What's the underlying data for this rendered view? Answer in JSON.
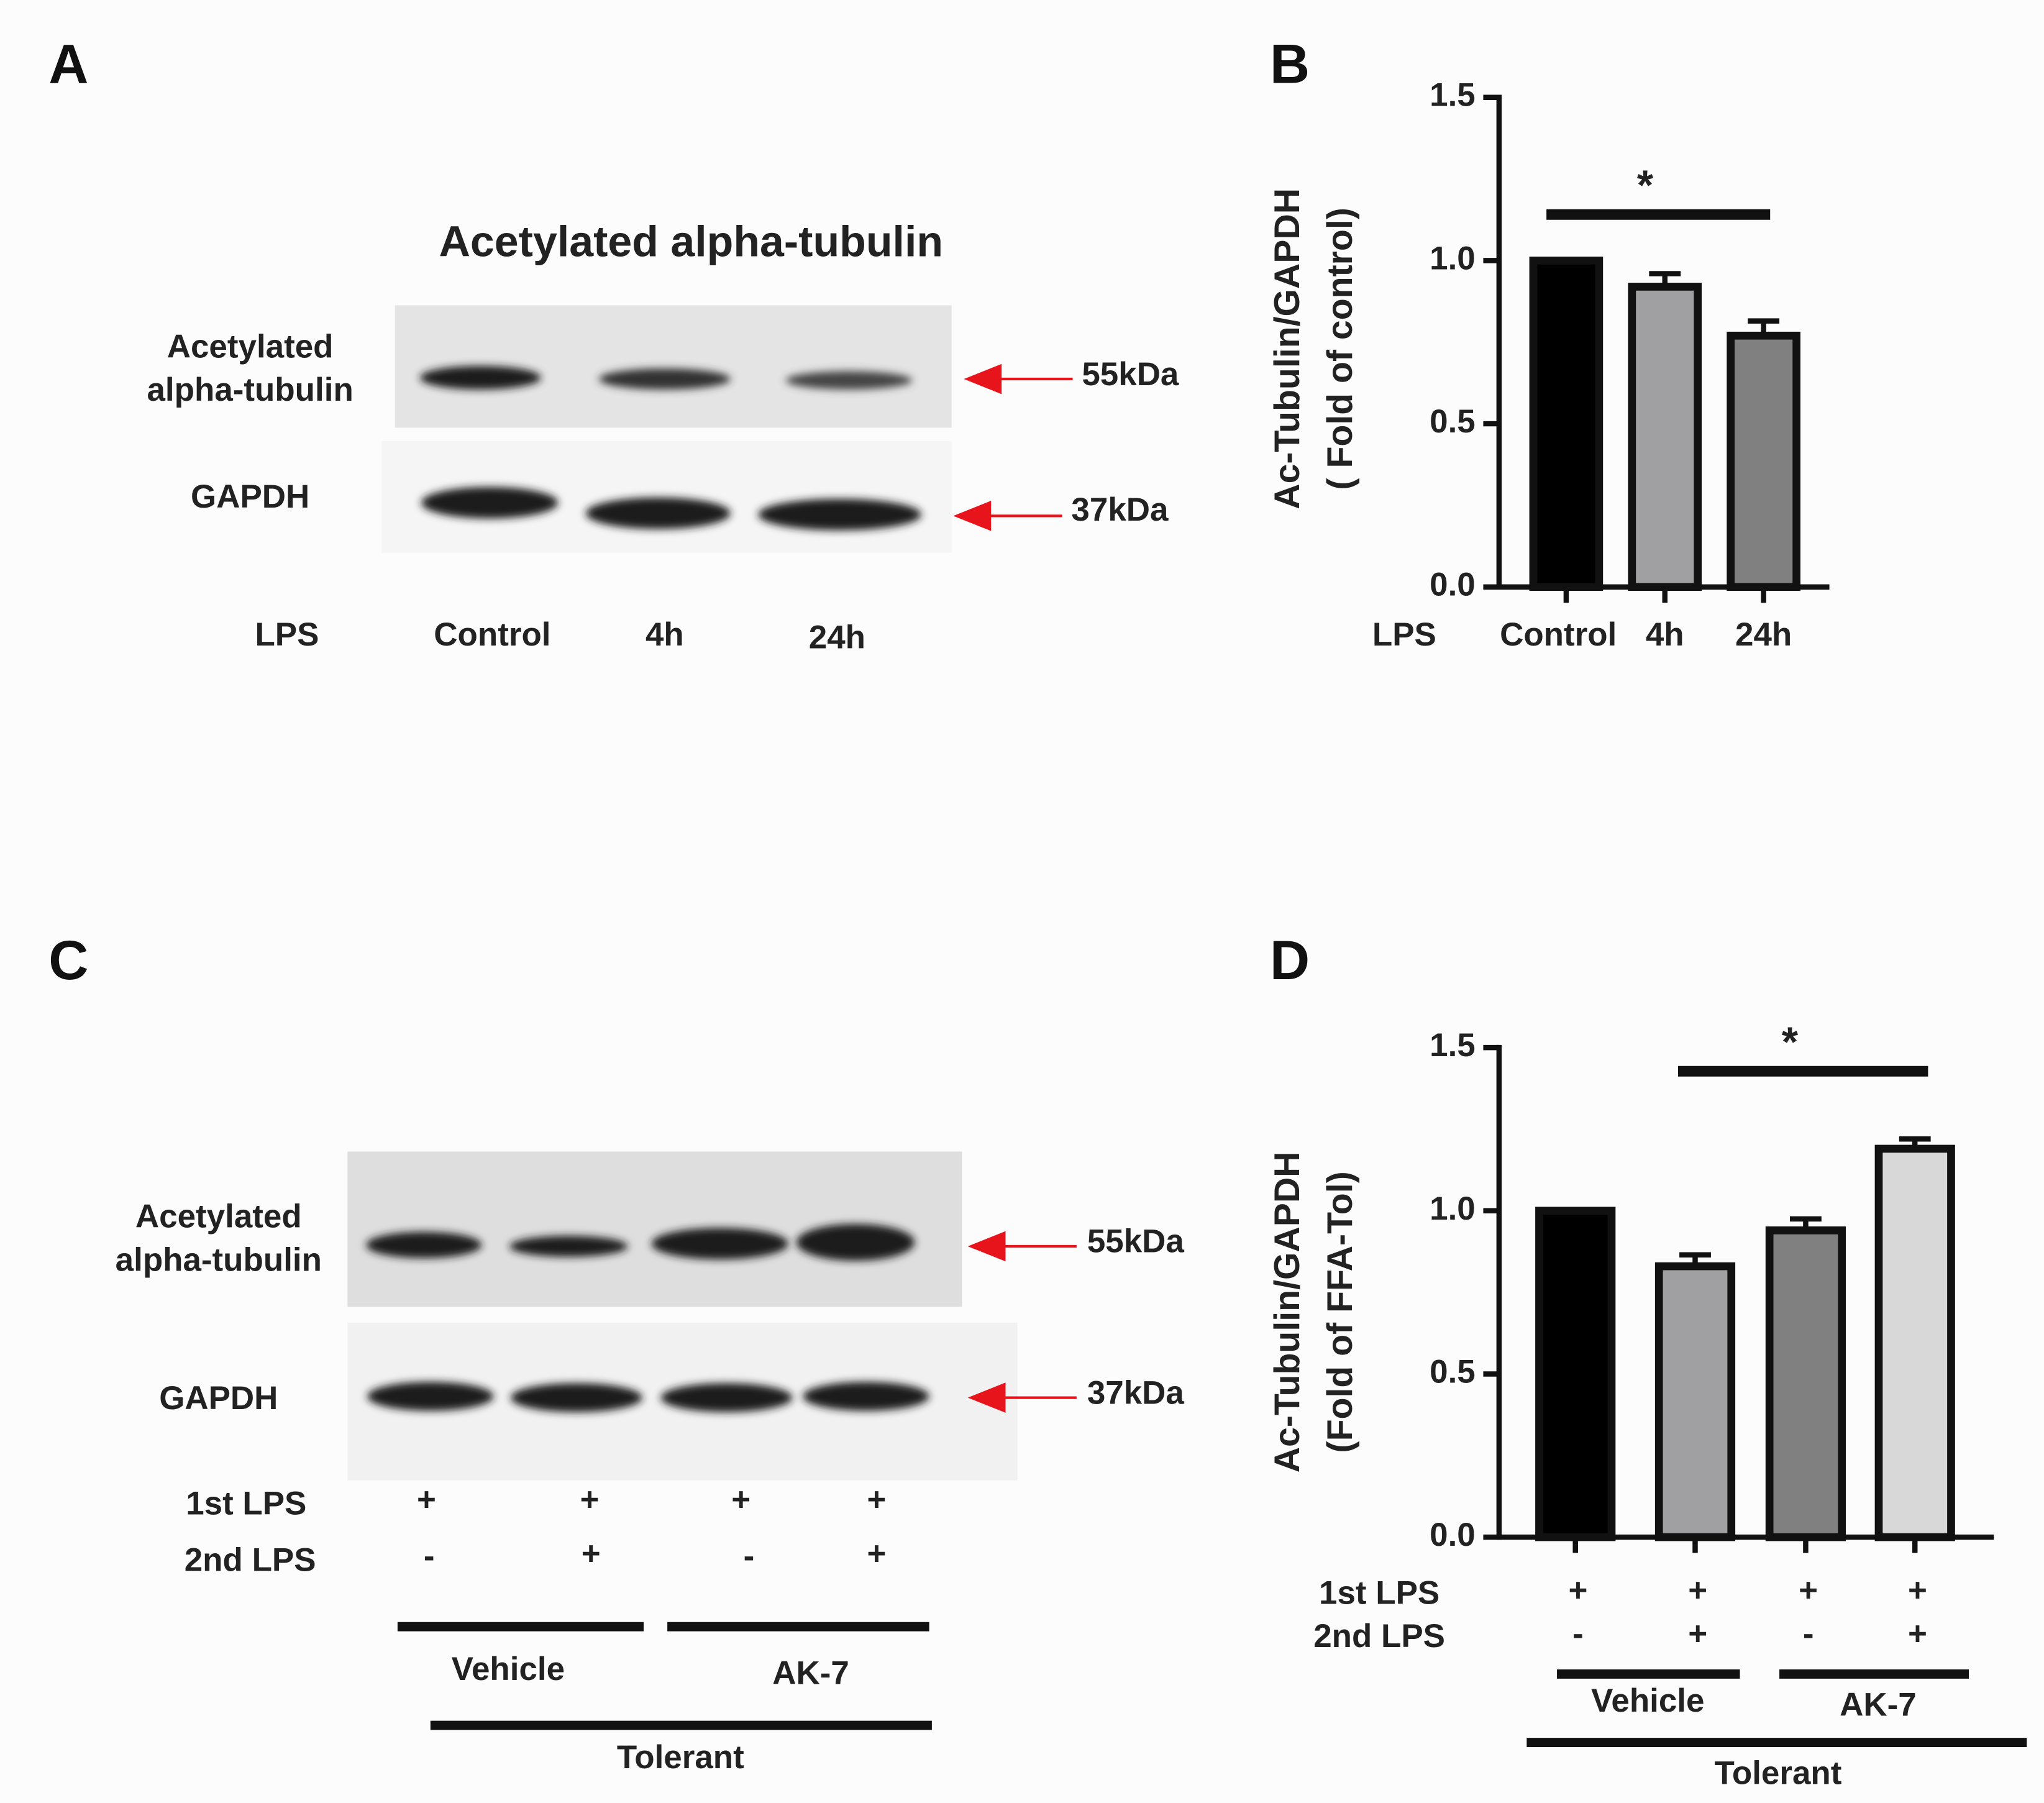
{
  "panels": {
    "a": {
      "letter": "A",
      "title": "Acetylated  alpha-tubulin",
      "row1": [
        "Acetylated",
        "alpha-tubulin"
      ],
      "row2": "GAPDH",
      "kda1": "55kDa",
      "kda2": "37kDa",
      "lane_header": "LPS",
      "lanes": [
        "Control",
        "4h",
        "24h"
      ]
    },
    "c": {
      "letter": "C",
      "row1": [
        "Acetylated",
        "alpha-tubulin"
      ],
      "row2": "GAPDH",
      "kda1": "55kDa",
      "kda2": "37kDa",
      "condition_rows": [
        {
          "name": "1st LPS",
          "values": [
            "+",
            "+",
            "+",
            "+"
          ]
        },
        {
          "name": "2nd LPS",
          "values": [
            "-",
            "+",
            "-",
            "+"
          ]
        }
      ],
      "groups": [
        "Vehicle",
        "AK-7"
      ],
      "supergroup": "Tolerant"
    },
    "b": {
      "letter": "B"
    },
    "d": {
      "letter": "D"
    }
  },
  "chart_data": [
    {
      "type": "bar",
      "y_label": [
        "Ac-Tubulin/GAPDH",
        "( Fold of control)"
      ],
      "group_label": "LPS",
      "categories": [
        "Control",
        "4h",
        "24h"
      ],
      "values": [
        1.0,
        0.92,
        0.77
      ],
      "errors": [
        null,
        0.04,
        0.045
      ],
      "colors": [
        "#000000",
        "#a0a0a2",
        "#808080"
      ],
      "ylim": [
        0,
        1.5
      ],
      "yticks": [
        {
          "value": 0,
          "label": "0.0"
        },
        {
          "value": 0.5,
          "label": "0.5"
        },
        {
          "value": 1,
          "label": "1.0"
        },
        {
          "value": 1.5,
          "label": "1.5"
        }
      ],
      "significance": "*"
    },
    {
      "type": "bar",
      "y_label": [
        "Ac-Tubulin/GAPDH",
        "(Fold of FFA-Tol)"
      ],
      "categories": [
        null,
        null,
        null,
        null
      ],
      "values": [
        1.0,
        0.83,
        0.94,
        1.19
      ],
      "errors": [
        null,
        0.035,
        0.035,
        0.03
      ],
      "colors": [
        "#000000",
        "#a0a0a2",
        "#808080",
        "#d8d8d8"
      ],
      "ylim": [
        0,
        1.5
      ],
      "yticks": [
        {
          "value": 0,
          "label": "0.0"
        },
        {
          "value": 0.5,
          "label": "0.5"
        },
        {
          "value": 1,
          "label": "1.0"
        },
        {
          "value": 1.5,
          "label": "1.5"
        }
      ],
      "condition_rows": [
        {
          "name": "1st LPS",
          "values": [
            "+",
            "+",
            "+",
            "+"
          ]
        },
        {
          "name": "2nd LPS",
          "values": [
            "-",
            "+",
            "-",
            "+"
          ]
        }
      ],
      "groups": [
        "Vehicle",
        "AK-7"
      ],
      "supergroup": "Tolerant",
      "significance": "*"
    }
  ]
}
